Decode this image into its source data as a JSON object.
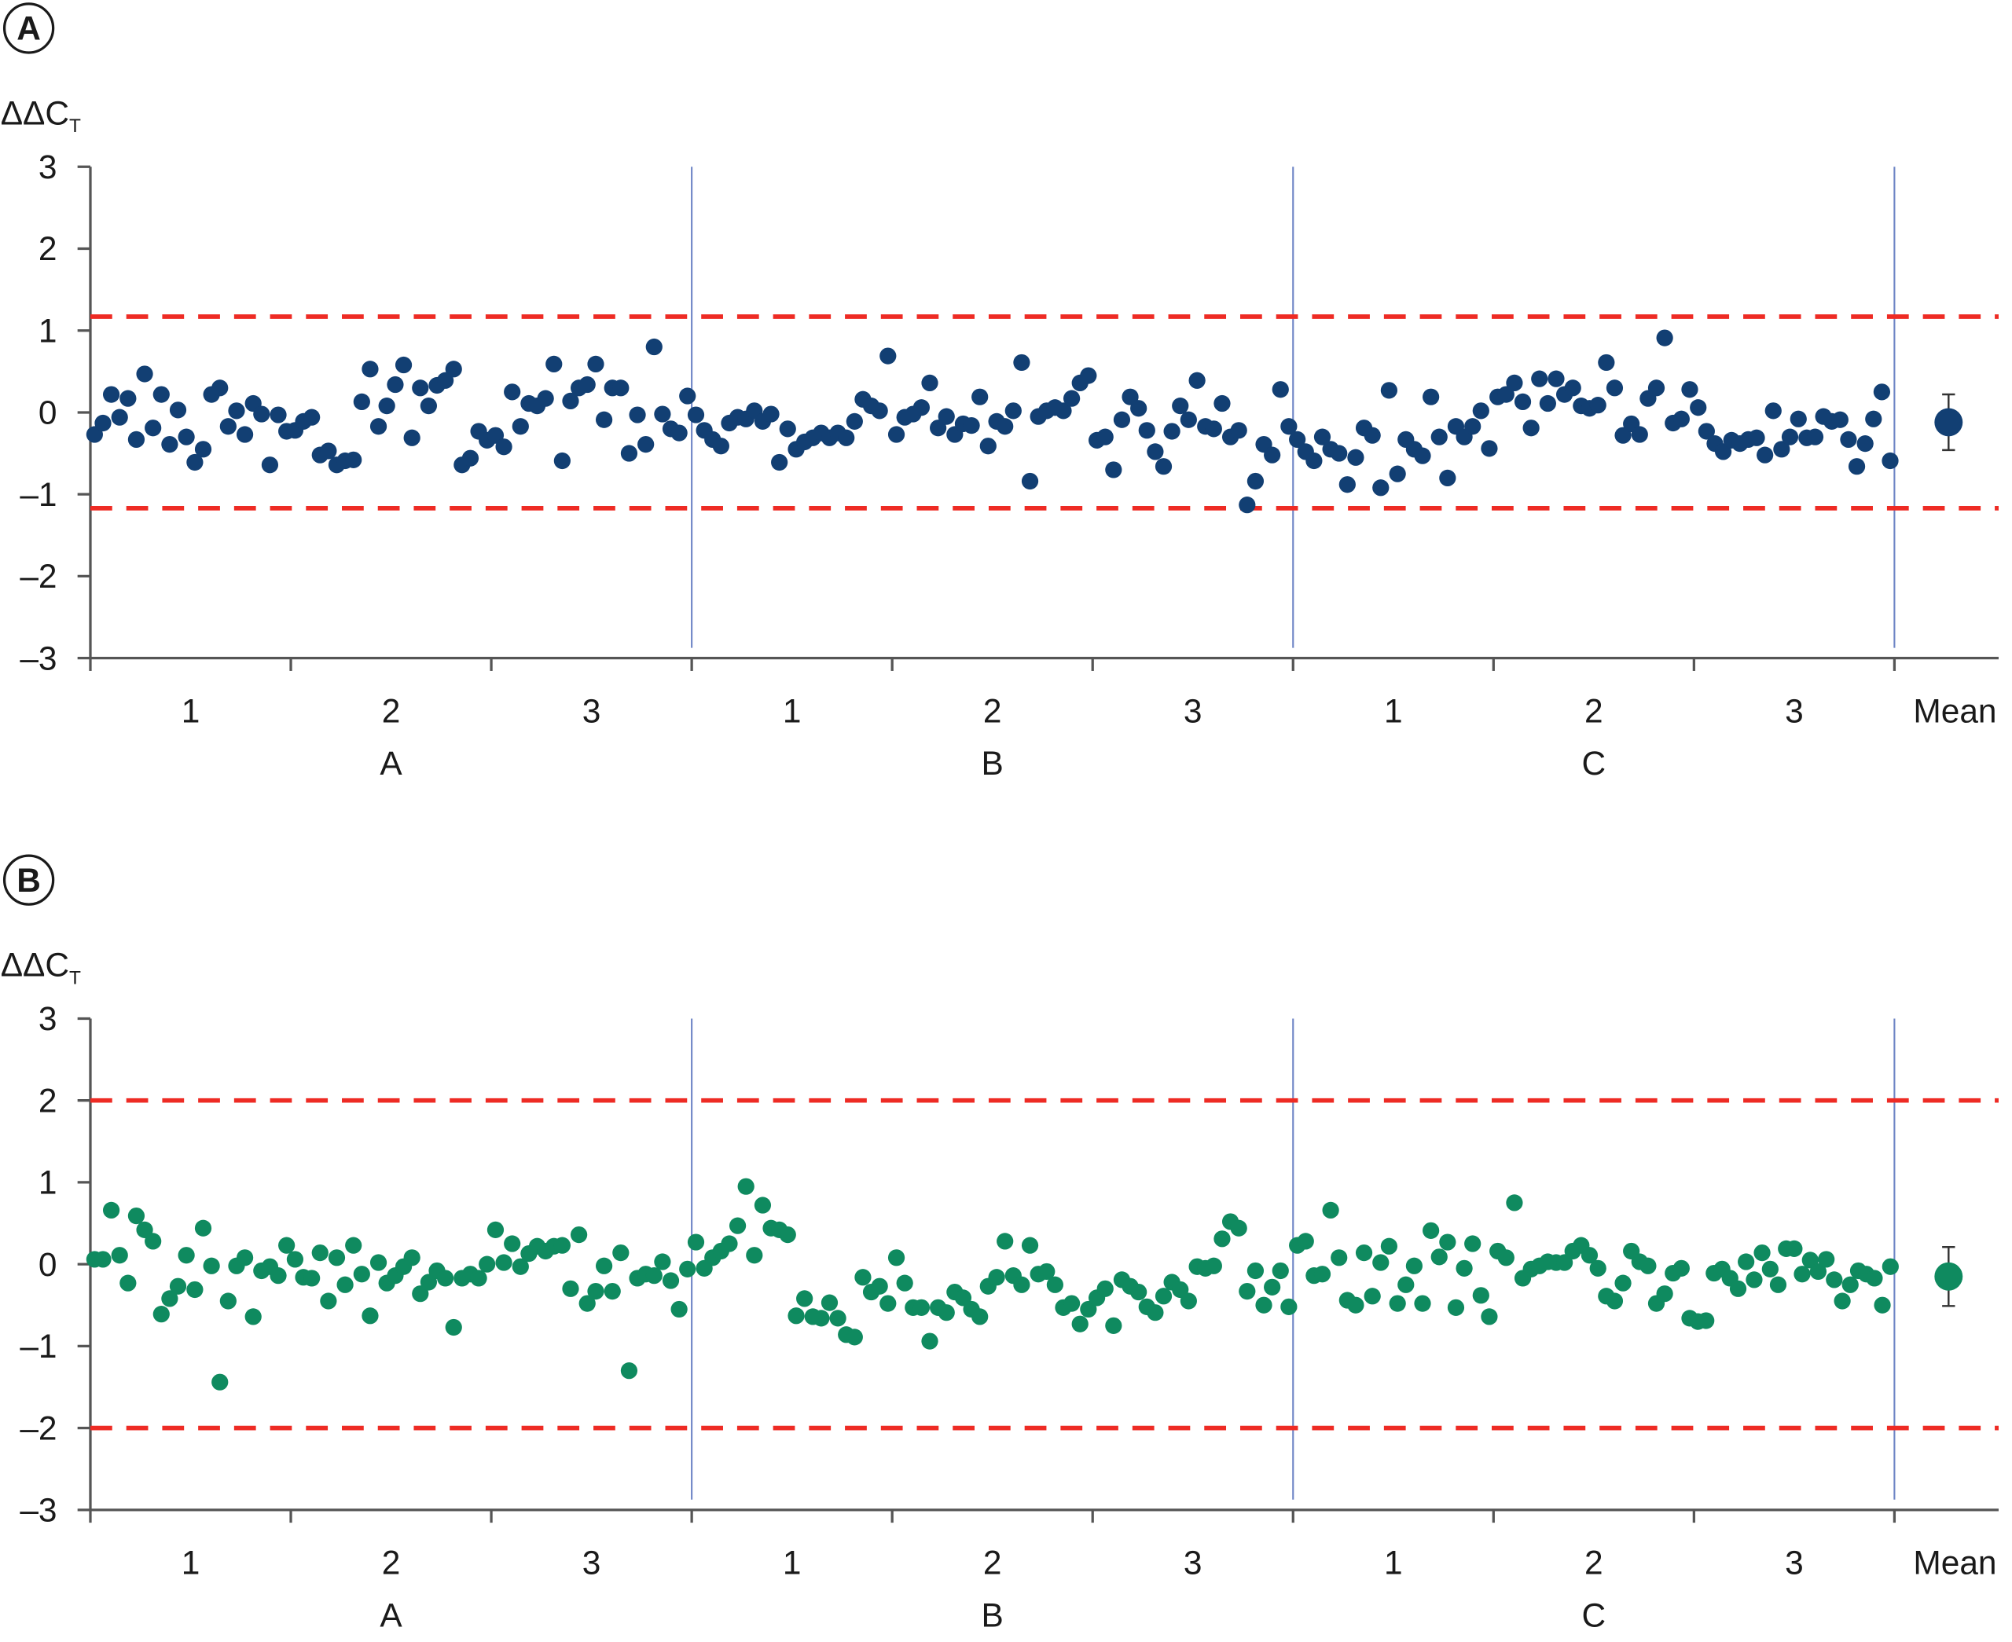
{
  "chart_data": [
    {
      "type": "scatter",
      "panel_label": "A",
      "ylabel": "ΔΔC",
      "ylabel_subscript": "T",
      "ylim": [
        -3,
        3
      ],
      "yticks": [
        "3",
        "2",
        "1",
        "0",
        "–1",
        "–2",
        "–3"
      ],
      "ytick_values": [
        3,
        2,
        1,
        0,
        -1,
        -2,
        -3
      ],
      "outer_categories": [
        "A",
        "B",
        "C"
      ],
      "inner_categories": [
        "1",
        "2",
        "3"
      ],
      "mean_label": "Mean",
      "limits": [
        1.17,
        -1.17
      ],
      "colors": {
        "points": "#123f73",
        "limits": "#ee2b24",
        "separators": "#6f86c6"
      },
      "groups": [
        [
          -0.27,
          -0.13,
          0.22,
          -0.06,
          0.17,
          -0.33,
          0.47,
          -0.19,
          0.22,
          -0.39,
          0.03,
          -0.3,
          -0.61,
          -0.45,
          0.22,
          0.3,
          -0.17,
          0.02,
          -0.27,
          0.11,
          -0.02,
          -0.64,
          -0.03,
          -0.23
        ],
        [
          -0.22,
          -0.11,
          -0.06,
          -0.52,
          -0.47,
          -0.64,
          -0.59,
          -0.58,
          0.13,
          0.53,
          -0.17,
          0.08,
          0.34,
          0.58,
          -0.31,
          0.3,
          0.08,
          0.33,
          0.39,
          0.53,
          -0.64,
          -0.56,
          -0.23,
          -0.34
        ],
        [
          -0.28,
          -0.42,
          0.25,
          -0.17,
          0.11,
          0.08,
          0.17,
          0.59,
          -0.59,
          0.14,
          0.3,
          0.34,
          0.59,
          -0.09,
          0.3,
          0.3,
          -0.5,
          -0.03,
          -0.39,
          0.8,
          -0.02,
          -0.2,
          -0.25,
          0.2
        ],
        [
          -0.03,
          -0.22,
          -0.33,
          -0.41,
          -0.13,
          -0.06,
          -0.08,
          0.02,
          -0.11,
          -0.02,
          -0.61,
          -0.2,
          -0.45,
          -0.36,
          -0.31,
          -0.25,
          -0.31,
          -0.25,
          -0.31,
          -0.11,
          0.16,
          0.08,
          0.02,
          0.69
        ],
        [
          -0.27,
          -0.06,
          -0.02,
          0.06,
          0.36,
          -0.19,
          -0.05,
          -0.27,
          -0.14,
          -0.16,
          0.19,
          -0.41,
          -0.11,
          -0.17,
          0.02,
          0.61,
          -0.84,
          -0.05,
          0.02,
          0.06,
          0.02,
          0.17,
          0.36,
          0.45
        ],
        [
          -0.34,
          -0.3,
          -0.7,
          -0.09,
          0.19,
          0.05,
          -0.22,
          -0.48,
          -0.66,
          -0.23,
          0.08,
          -0.09,
          0.39,
          -0.17,
          -0.2,
          0.11,
          -0.3,
          -0.22,
          -1.13,
          -0.84,
          -0.39,
          -0.52,
          0.28,
          -0.17
        ],
        [
          -0.33,
          -0.48,
          -0.59,
          -0.3,
          -0.45,
          -0.5,
          -0.88,
          -0.55,
          -0.19,
          -0.28,
          -0.92,
          0.27,
          -0.75,
          -0.33,
          -0.45,
          -0.53,
          0.19,
          -0.3,
          -0.8,
          -0.17,
          -0.3,
          -0.17,
          0.02,
          -0.44
        ],
        [
          0.19,
          0.22,
          0.36,
          0.13,
          -0.19,
          0.41,
          0.11,
          0.41,
          0.22,
          0.3,
          0.08,
          0.05,
          0.09,
          0.61,
          0.3,
          -0.28,
          -0.14,
          -0.27,
          0.17,
          0.3,
          0.91,
          -0.13,
          -0.08,
          0.28
        ],
        [
          0.06,
          -0.23,
          -0.38,
          -0.48,
          -0.34,
          -0.38,
          -0.33,
          -0.31,
          -0.52,
          0.02,
          -0.45,
          -0.3,
          -0.08,
          -0.31,
          -0.3,
          -0.05,
          -0.11,
          -0.09,
          -0.33,
          -0.66,
          -0.38,
          -0.08,
          0.25,
          -0.59
        ]
      ],
      "mean": {
        "value": -0.12,
        "error": 0.34
      }
    },
    {
      "type": "scatter",
      "panel_label": "B",
      "ylabel": "ΔΔC",
      "ylabel_subscript": "T",
      "ylim": [
        -3,
        3
      ],
      "yticks": [
        "3",
        "2",
        "1",
        "0",
        "–1",
        "–2",
        "–3"
      ],
      "ytick_values": [
        3,
        2,
        1,
        0,
        -1,
        -2,
        -3
      ],
      "outer_categories": [
        "A",
        "B",
        "C"
      ],
      "inner_categories": [
        "1",
        "2",
        "3"
      ],
      "mean_label": "Mean",
      "limits": [
        2,
        -2
      ],
      "colors": {
        "points": "#0f8a5f",
        "limits": "#ee2b24",
        "separators": "#6f86c6"
      },
      "groups": [
        [
          0.06,
          0.06,
          0.66,
          0.11,
          -0.23,
          0.59,
          0.42,
          0.28,
          -0.61,
          -0.42,
          -0.27,
          0.11,
          -0.31,
          0.44,
          -0.02,
          -1.44,
          -0.45,
          -0.02,
          0.08,
          -0.64,
          -0.08,
          -0.03,
          -0.14,
          0.23
        ],
        [
          0.06,
          -0.16,
          -0.17,
          0.14,
          -0.45,
          0.08,
          -0.25,
          0.23,
          -0.12,
          -0.63,
          0.02,
          -0.23,
          -0.14,
          -0.03,
          0.08,
          -0.36,
          -0.22,
          -0.08,
          -0.17,
          -0.77,
          -0.17,
          -0.12,
          -0.17,
          0
        ],
        [
          0.42,
          0.02,
          0.25,
          -0.03,
          0.13,
          0.22,
          0.16,
          0.22,
          0.23,
          -0.3,
          0.36,
          -0.48,
          -0.33,
          -0.02,
          -0.33,
          0.14,
          -1.3,
          -0.17,
          -0.12,
          -0.14,
          0.03,
          -0.2,
          -0.55,
          -0.06
        ],
        [
          0.27,
          -0.05,
          0.08,
          0.16,
          0.25,
          0.47,
          0.95,
          0.11,
          0.72,
          0.44,
          0.42,
          0.36,
          -0.63,
          -0.42,
          -0.64,
          -0.66,
          -0.47,
          -0.66,
          -0.86,
          -0.89,
          -0.16,
          -0.34,
          -0.27,
          -0.48
        ],
        [
          0.08,
          -0.23,
          -0.53,
          -0.53,
          -0.94,
          -0.53,
          -0.59,
          -0.34,
          -0.41,
          -0.55,
          -0.64,
          -0.27,
          -0.16,
          0.28,
          -0.14,
          -0.25,
          0.23,
          -0.12,
          -0.09,
          -0.25,
          -0.53,
          -0.48,
          -0.73,
          -0.55
        ],
        [
          -0.41,
          -0.3,
          -0.75,
          -0.19,
          -0.27,
          -0.34,
          -0.52,
          -0.59,
          -0.39,
          -0.22,
          -0.31,
          -0.45,
          -0.03,
          -0.05,
          -0.02,
          0.31,
          0.52,
          0.44,
          -0.33,
          -0.08,
          -0.5,
          -0.28,
          -0.08,
          -0.52
        ],
        [
          0.23,
          0.28,
          -0.14,
          -0.12,
          0.66,
          0.08,
          -0.44,
          -0.5,
          0.14,
          -0.39,
          0.02,
          0.22,
          -0.48,
          -0.25,
          -0.02,
          -0.48,
          0.41,
          0.09,
          0.27,
          -0.53,
          -0.05,
          0.25,
          -0.38,
          -0.64
        ],
        [
          0.16,
          0.08,
          0.75,
          -0.17,
          -0.06,
          -0.02,
          0.03,
          0.02,
          0.02,
          0.16,
          0.23,
          0.11,
          -0.05,
          -0.39,
          -0.45,
          -0.23,
          0.16,
          0.03,
          -0.02,
          -0.48,
          -0.36,
          -0.11,
          -0.05,
          -0.66
        ],
        [
          -0.7,
          -0.69,
          -0.11,
          -0.06,
          -0.17,
          -0.3,
          0.03,
          -0.19,
          0.14,
          -0.06,
          -0.25,
          0.19,
          0.19,
          -0.12,
          0.05,
          -0.09,
          0.06,
          -0.19,
          -0.45,
          -0.25,
          -0.08,
          -0.12,
          -0.17,
          -0.5,
          -0.03
        ]
      ],
      "mean": {
        "value": -0.15,
        "error": 0.36
      }
    }
  ]
}
